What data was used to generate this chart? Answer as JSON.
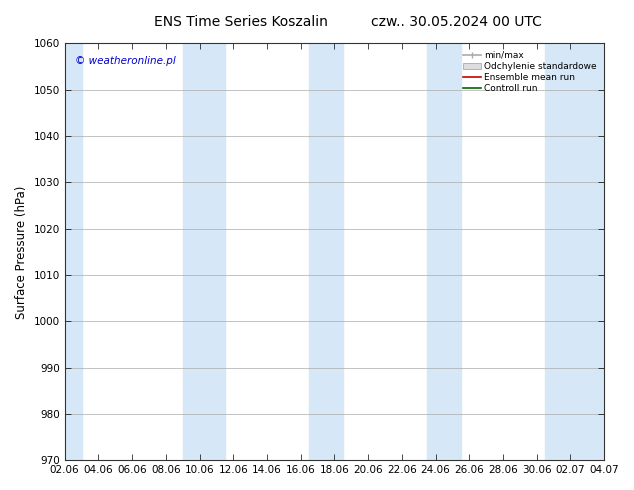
{
  "title": "ENS Time Series Koszalin",
  "title_right": "czw.. 30.05.2024 00 UTC",
  "ylabel": "Surface Pressure (hPa)",
  "ylim": [
    970,
    1060
  ],
  "yticks": [
    970,
    980,
    990,
    1000,
    1010,
    1020,
    1030,
    1040,
    1050,
    1060
  ],
  "x_tick_labels": [
    "02.06",
    "04.06",
    "06.06",
    "08.06",
    "10.06",
    "12.06",
    "14.06",
    "16.06",
    "18.06",
    "20.06",
    "22.06",
    "24.06",
    "26.06",
    "28.06",
    "30.06",
    "02.07",
    "04.07"
  ],
  "x_tick_positions": [
    0,
    2,
    4,
    6,
    8,
    10,
    12,
    14,
    16,
    18,
    20,
    22,
    24,
    26,
    28,
    30,
    32
  ],
  "shaded_bands": [
    {
      "x_start": -0.5,
      "x_end": 1.0
    },
    {
      "x_start": 7.0,
      "x_end": 9.5
    },
    {
      "x_start": 14.5,
      "x_end": 16.5
    },
    {
      "x_start": 21.5,
      "x_end": 23.5
    },
    {
      "x_start": 28.5,
      "x_end": 32.5
    }
  ],
  "band_color": "#d6e8f7",
  "legend_labels": [
    "min/max",
    "Odchylenie standardowe",
    "Ensemble mean run",
    "Controll run"
  ],
  "legend_colors_line": [
    "#aaaaaa",
    "#cccccc",
    "#cc0000",
    "#006600"
  ],
  "watermark_text": "© weatheronline.pl",
  "watermark_color": "#0000cc",
  "background_color": "#ffffff",
  "plot_bg_color": "#ffffff",
  "title_fontsize": 10,
  "tick_fontsize": 7.5,
  "ylabel_fontsize": 8.5
}
